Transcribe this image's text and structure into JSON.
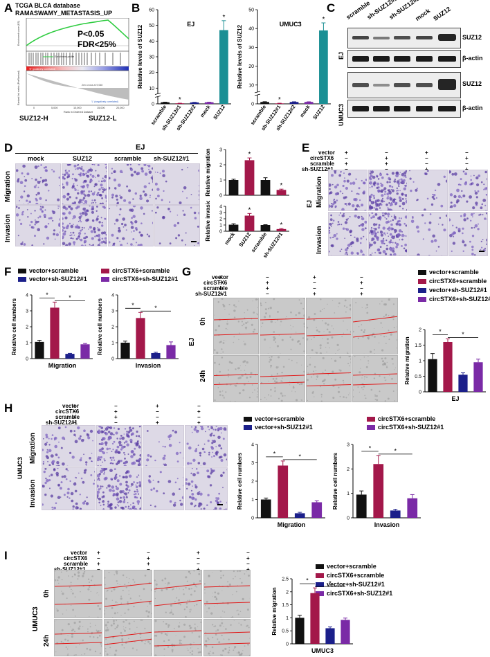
{
  "panels": {
    "A": {
      "label": "A",
      "title1": "TCGA BLCA database",
      "title2": "RAMASWAMY_METASTASIS_UP",
      "stat1": "P<0.05",
      "stat2": "FDR<25%",
      "left_group": "SUZ12-H",
      "right_group": "SUZ12-L",
      "ylabel_top": "Enrichment score (ES)",
      "ylabel_bottom": "Ranked list metric (PreRanked)",
      "xlabel": "Rank in Ordered Dataset",
      "xticks": [
        "0",
        "5,000",
        "10,000",
        "15,000",
        "20,000"
      ],
      "zero_cross": "Zero cross at 9,068",
      "pos_note": "'H' (positively correlated)",
      "neg_note": "'L' (negatively correlated)",
      "legend_es": "Enrichment profile"
    },
    "B": {
      "label": "B"
    },
    "C": {
      "label": "C",
      "lanes": [
        "scramble",
        "sh-SUZ12#1",
        "sh-SUZ12#2",
        "mock",
        "SUZ12"
      ],
      "rows": [
        "SUZ12",
        "β-actin"
      ],
      "lines": [
        "EJ",
        "UMUC3"
      ]
    },
    "D": {
      "label": "D",
      "line": "EJ",
      "cols": [
        "mock",
        "SUZ12",
        "scramble",
        "sh-SUZ12#1"
      ],
      "rows": [
        "Migration",
        "Invasion"
      ]
    },
    "E": {
      "label": "E",
      "line": "EJ",
      "row_names": [
        "vector",
        "circSTX6",
        "scramble",
        "sh-SUZ12#1"
      ],
      "signs": [
        [
          "+",
          "−",
          "+",
          "−"
        ],
        [
          "−",
          "+",
          "−",
          "+"
        ],
        [
          "+",
          "+",
          "−",
          "−"
        ],
        [
          "−",
          "−",
          "+",
          "+"
        ]
      ],
      "rows": [
        "Migration",
        "Invasion"
      ]
    },
    "F": {
      "label": "F"
    },
    "G": {
      "label": "G",
      "line": "EJ",
      "row_names": [
        "vector",
        "circSTX6",
        "scramble",
        "sh-SUZ12#1"
      ],
      "signs": [
        [
          "+",
          "−",
          "+",
          "−"
        ],
        [
          "−",
          "+",
          "−",
          "+"
        ],
        [
          "+",
          "+",
          "−",
          "−"
        ],
        [
          "−",
          "−",
          "+",
          "+"
        ]
      ],
      "rows": [
        "0h",
        "24h"
      ]
    },
    "H": {
      "label": "H",
      "line": "UMUC3",
      "row_names": [
        "vector",
        "circSTX6",
        "scramble",
        "sh-SUZ12#1"
      ],
      "signs": [
        [
          "+",
          "−",
          "+",
          "−"
        ],
        [
          "−",
          "+",
          "−",
          "+"
        ],
        [
          "+",
          "+",
          "−",
          "−"
        ],
        [
          "−",
          "−",
          "+",
          "+"
        ]
      ],
      "rows": [
        "Migration",
        "Invasion"
      ]
    },
    "I": {
      "label": "I",
      "line": "UMUC3",
      "row_names": [
        "vector",
        "circSTX6",
        "scramble",
        "sh-SUZ12#1"
      ],
      "signs": [
        [
          "+",
          "−",
          "+",
          "−"
        ],
        [
          "−",
          "+",
          "−",
          "+"
        ],
        [
          "+",
          "+",
          "−",
          "−"
        ],
        [
          "−",
          "−",
          "+",
          "+"
        ]
      ],
      "rows": [
        "0h",
        "24h"
      ]
    }
  },
  "colors": {
    "black": "#111111",
    "crimson": "#a3184a",
    "navy": "#1b1f8a",
    "purple": "#7a2aa6",
    "teal": "#1a8f94",
    "es_line": "#2ecc40"
  },
  "legend4": [
    "vector+scramble",
    "circSTX6+scramble",
    "vector+sh-SUZ12#1",
    "circSTX6+sh-SUZ12#1"
  ],
  "chart_data": [
    {
      "id": "B-EJ",
      "type": "bar",
      "title": "EJ",
      "ylabel": "Relative levels of SUZ12",
      "ylim": [
        0,
        60
      ],
      "yticks": [
        0,
        10,
        20,
        30,
        40,
        50,
        60
      ],
      "categories": [
        "scramble",
        "sh-SUZ12#1",
        "sh-SUZ12#2",
        "mock",
        "SUZ12"
      ],
      "values": [
        1.0,
        0.35,
        0.9,
        1.0,
        47
      ],
      "errors": [
        0.08,
        0.06,
        0.06,
        0.06,
        6
      ],
      "colors": [
        "#111111",
        "#a3184a",
        "#1b1f8a",
        "#7a2aa6",
        "#1a8f94"
      ],
      "stars": [
        false,
        true,
        false,
        false,
        true
      ],
      "axis_break": true
    },
    {
      "id": "B-UMUC3",
      "type": "bar",
      "title": "UMUC3",
      "ylabel": "Relative levels of SUZ12",
      "ylim": [
        0,
        50
      ],
      "yticks": [
        0,
        10,
        20,
        30,
        40,
        50
      ],
      "categories": [
        "scramble",
        "sh-SUZ12#1",
        "sh-SUZ12#2",
        "mock",
        "SUZ12"
      ],
      "values": [
        1.0,
        0.25,
        1.0,
        1.0,
        39
      ],
      "errors": [
        0.15,
        0.08,
        0.1,
        0.1,
        4
      ],
      "colors": [
        "#111111",
        "#a3184a",
        "#1b1f8a",
        "#7a2aa6",
        "#1a8f94"
      ],
      "stars": [
        false,
        true,
        false,
        false,
        true
      ],
      "axis_break": true
    },
    {
      "id": "D-migration",
      "type": "bar",
      "ylabel": "Relative migration",
      "ylim": [
        0,
        3
      ],
      "yticks": [
        0,
        1,
        2,
        3
      ],
      "categories": [
        "mock",
        "SUZ12",
        "scramble",
        "sh-SUZ12#1"
      ],
      "values": [
        1.0,
        2.3,
        1.0,
        0.35
      ],
      "errors": [
        0.05,
        0.15,
        0.15,
        0.05
      ],
      "colors": [
        "#111111",
        "#a3184a",
        "#111111",
        "#a3184a"
      ],
      "stars": [
        false,
        true,
        false,
        true
      ],
      "show_xticks": false
    },
    {
      "id": "D-invasion",
      "type": "bar",
      "ylabel": "Relative invasion",
      "ylim": [
        0,
        4
      ],
      "yticks": [
        0,
        1,
        2,
        3,
        4
      ],
      "categories": [
        "mock",
        "SUZ12",
        "scramble",
        "sh-SUZ12#1"
      ],
      "values": [
        1.05,
        2.5,
        1.0,
        0.35
      ],
      "errors": [
        0.15,
        0.35,
        0.05,
        0.08
      ],
      "colors": [
        "#111111",
        "#a3184a",
        "#111111",
        "#a3184a"
      ],
      "stars": [
        false,
        true,
        false,
        true
      ],
      "show_xticks": true
    },
    {
      "id": "F-migration",
      "type": "bar",
      "xlabel": "Migration",
      "ylabel": "Relative cell numbers",
      "ylim": [
        0,
        4
      ],
      "yticks": [
        0,
        1,
        2,
        3,
        4
      ],
      "categories": [
        "vector+scramble",
        "circSTX6+scramble",
        "vector+sh-SUZ12#1",
        "circSTX6+sh-SUZ12#1"
      ],
      "values": [
        1.05,
        3.2,
        0.3,
        0.9
      ],
      "errors": [
        0.1,
        0.35,
        0.03,
        0.05
      ],
      "colors": [
        "#111111",
        "#a3184a",
        "#1b1f8a",
        "#7a2aa6"
      ],
      "brackets": [
        [
          0,
          1
        ],
        [
          1,
          3
        ]
      ]
    },
    {
      "id": "F-invasion",
      "type": "bar",
      "xlabel": "Invasion",
      "ylabel": "Relative cell numbers",
      "ylim": [
        0,
        4
      ],
      "yticks": [
        0,
        1,
        2,
        3,
        4
      ],
      "categories": [
        "vector+scramble",
        "circSTX6+scramble",
        "vector+sh-SUZ12#1",
        "circSTX6+sh-SUZ12#1"
      ],
      "values": [
        1.0,
        2.55,
        0.35,
        0.85
      ],
      "errors": [
        0.1,
        0.35,
        0.05,
        0.2
      ],
      "colors": [
        "#111111",
        "#a3184a",
        "#1b1f8a",
        "#7a2aa6"
      ],
      "brackets": [
        [
          0,
          1
        ],
        [
          1,
          3
        ]
      ]
    },
    {
      "id": "G-migration",
      "type": "bar",
      "xlabel": "EJ",
      "ylabel": "Relative migration",
      "ylim": [
        0,
        2.0
      ],
      "yticks": [
        0.0,
        0.5,
        1.0,
        1.5,
        2.0
      ],
      "categories": [
        "vector+scramble",
        "circSTX6+scramble",
        "vector+sh-SUZ12#1",
        "circSTX6+sh-SUZ12#1"
      ],
      "values": [
        1.05,
        1.6,
        0.55,
        0.95
      ],
      "errors": [
        0.18,
        0.1,
        0.06,
        0.1
      ],
      "colors": [
        "#111111",
        "#a3184a",
        "#1b1f8a",
        "#7a2aa6"
      ],
      "brackets": [
        [
          0,
          1
        ],
        [
          1,
          3
        ]
      ]
    },
    {
      "id": "H-migration",
      "type": "bar",
      "xlabel": "Migration",
      "ylabel": "Relative cell numbers",
      "ylim": [
        0,
        4
      ],
      "yticks": [
        0,
        1,
        2,
        3,
        4
      ],
      "categories": [
        "vector+scramble",
        "circSTX6+scramble",
        "vector+sh-SUZ12#1",
        "circSTX6+sh-SUZ12#1"
      ],
      "values": [
        1.0,
        2.85,
        0.25,
        0.85
      ],
      "errors": [
        0.08,
        0.25,
        0.05,
        0.08
      ],
      "colors": [
        "#111111",
        "#a3184a",
        "#1b1f8a",
        "#7a2aa6"
      ],
      "brackets": [
        [
          0,
          1
        ],
        [
          1,
          3
        ]
      ]
    },
    {
      "id": "H-invasion",
      "type": "bar",
      "xlabel": "Invasion",
      "ylabel": "Relative cell numbers",
      "ylim": [
        0,
        3
      ],
      "yticks": [
        0,
        1,
        2,
        3
      ],
      "categories": [
        "vector+scramble",
        "circSTX6+scramble",
        "vector+sh-SUZ12#1",
        "circSTX6+sh-SUZ12#1"
      ],
      "values": [
        0.95,
        2.2,
        0.3,
        0.8
      ],
      "errors": [
        0.15,
        0.35,
        0.05,
        0.15
      ],
      "colors": [
        "#111111",
        "#a3184a",
        "#1b1f8a",
        "#7a2aa6"
      ],
      "brackets": [
        [
          0,
          1
        ],
        [
          1,
          3
        ]
      ]
    },
    {
      "id": "I-migration",
      "type": "bar",
      "xlabel": "UMUC3",
      "ylabel": "Relative migration",
      "ylim": [
        0,
        2.5
      ],
      "yticks": [
        0.0,
        0.5,
        1.0,
        1.5,
        2.0,
        2.5
      ],
      "categories": [
        "vector+scramble",
        "circSTX6+scramble",
        "vector+sh-SUZ12#1",
        "circSTX6+sh-SUZ12#1"
      ],
      "values": [
        1.0,
        1.95,
        0.6,
        0.92
      ],
      "errors": [
        0.1,
        0.2,
        0.05,
        0.07
      ],
      "colors": [
        "#111111",
        "#a3184a",
        "#1b1f8a",
        "#7a2aa6"
      ],
      "brackets": [
        [
          0,
          1
        ],
        [
          1,
          3
        ]
      ]
    }
  ]
}
